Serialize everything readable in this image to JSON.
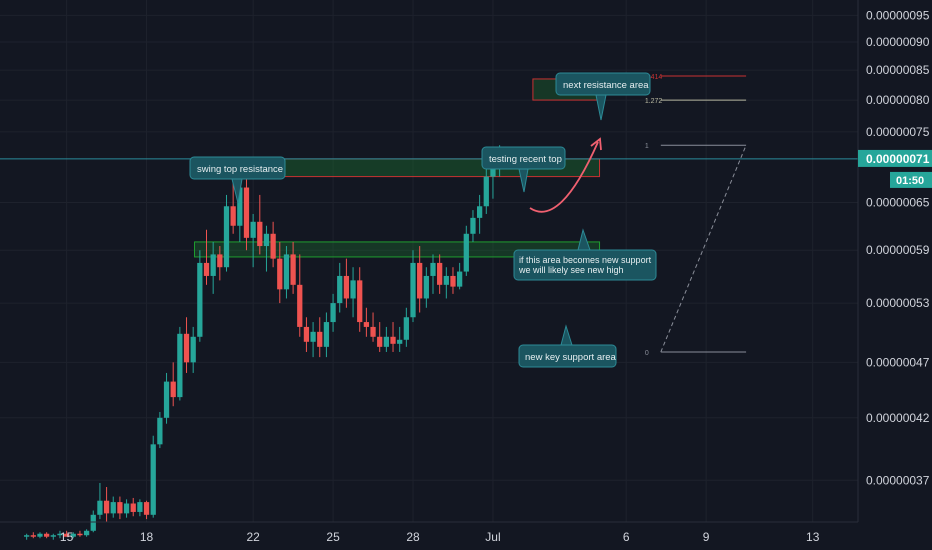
{
  "colors": {
    "background": "#131722",
    "up": "#26a69a",
    "down": "#ef5350",
    "grid": "#1e222d",
    "axis_text": "#d1d4dc",
    "price_line": "#2a8d9b",
    "price_badge": "#26a69a",
    "support_box": "#1f9e2f",
    "resistance_box": "#c83232",
    "callout": "#1b5560"
  },
  "chart_data": {
    "type": "candlestick",
    "y_axis": {
      "ticks": [
        "0.00000095",
        "0.00000090",
        "0.00000085",
        "0.00000080",
        "0.00000075",
        "0.00000065",
        "0.00000059",
        "0.00000053",
        "0.00000047",
        "0.00000042",
        "0.00000037"
      ],
      "scale": "log",
      "range": [
        3.4e-07,
        9.8e-07
      ]
    },
    "x_axis": {
      "ticks": [
        "15",
        "18",
        "22",
        "25",
        "28",
        "Jul",
        "6",
        "9",
        "13"
      ],
      "tick_days": [
        15,
        18,
        22,
        25,
        28,
        31,
        36,
        39,
        43
      ],
      "range": [
        12.5,
        44.7
      ]
    },
    "current_price": {
      "value": "0.00000071",
      "countdown": "01:50"
    },
    "candles": [
      {
        "d": 13.5,
        "o": 3.3e-07,
        "h": 3.32e-07,
        "l": 3.28e-07,
        "c": 3.31e-07
      },
      {
        "d": 13.75,
        "o": 3.31e-07,
        "h": 3.33e-07,
        "l": 3.29e-07,
        "c": 3.3e-07
      },
      {
        "d": 14.0,
        "o": 3.3e-07,
        "h": 3.33e-07,
        "l": 3.29e-07,
        "c": 3.32e-07
      },
      {
        "d": 14.25,
        "o": 3.32e-07,
        "h": 3.33e-07,
        "l": 3.29e-07,
        "c": 3.3e-07
      },
      {
        "d": 14.5,
        "o": 3.3e-07,
        "h": 3.32e-07,
        "l": 3.28e-07,
        "c": 3.31e-07
      },
      {
        "d": 14.75,
        "o": 3.31e-07,
        "h": 3.34e-07,
        "l": 3.29e-07,
        "c": 3.32e-07
      },
      {
        "d": 15.0,
        "o": 3.32e-07,
        "h": 3.34e-07,
        "l": 3.3e-07,
        "c": 3.3e-07
      },
      {
        "d": 15.25,
        "o": 3.3e-07,
        "h": 3.33e-07,
        "l": 3.29e-07,
        "c": 3.32e-07
      },
      {
        "d": 15.5,
        "o": 3.32e-07,
        "h": 3.34e-07,
        "l": 3.3e-07,
        "c": 3.31e-07
      },
      {
        "d": 15.75,
        "o": 3.31e-07,
        "h": 3.35e-07,
        "l": 3.3e-07,
        "c": 3.34e-07
      },
      {
        "d": 16.0,
        "o": 3.34e-07,
        "h": 3.48e-07,
        "l": 3.33e-07,
        "c": 3.45e-07
      },
      {
        "d": 16.25,
        "o": 3.45e-07,
        "h": 3.68e-07,
        "l": 3.42e-07,
        "c": 3.55e-07
      },
      {
        "d": 16.5,
        "o": 3.55e-07,
        "h": 3.65e-07,
        "l": 3.4e-07,
        "c": 3.46e-07
      },
      {
        "d": 16.75,
        "o": 3.46e-07,
        "h": 3.58e-07,
        "l": 3.43e-07,
        "c": 3.54e-07
      },
      {
        "d": 17.0,
        "o": 3.54e-07,
        "h": 3.58e-07,
        "l": 3.42e-07,
        "c": 3.46e-07
      },
      {
        "d": 17.25,
        "o": 3.46e-07,
        "h": 3.56e-07,
        "l": 3.43e-07,
        "c": 3.53e-07
      },
      {
        "d": 17.5,
        "o": 3.53e-07,
        "h": 3.57e-07,
        "l": 3.44e-07,
        "c": 3.47e-07
      },
      {
        "d": 17.75,
        "o": 3.47e-07,
        "h": 3.56e-07,
        "l": 3.44e-07,
        "c": 3.54e-07
      },
      {
        "d": 18.0,
        "o": 3.54e-07,
        "h": 3.55e-07,
        "l": 3.42e-07,
        "c": 3.45e-07
      },
      {
        "d": 18.25,
        "o": 3.45e-07,
        "h": 4.05e-07,
        "l": 3.43e-07,
        "c": 3.98e-07
      },
      {
        "d": 18.5,
        "o": 3.98e-07,
        "h": 4.25e-07,
        "l": 3.95e-07,
        "c": 4.2e-07
      },
      {
        "d": 18.75,
        "o": 4.2e-07,
        "h": 4.6e-07,
        "l": 4.15e-07,
        "c": 4.52e-07
      },
      {
        "d": 19.0,
        "o": 4.52e-07,
        "h": 4.7e-07,
        "l": 4.3e-07,
        "c": 4.38e-07
      },
      {
        "d": 19.25,
        "o": 4.38e-07,
        "h": 5.05e-07,
        "l": 4.35e-07,
        "c": 4.98e-07
      },
      {
        "d": 19.5,
        "o": 4.98e-07,
        "h": 5.15e-07,
        "l": 4.6e-07,
        "c": 4.7e-07
      },
      {
        "d": 19.75,
        "o": 4.7e-07,
        "h": 5.05e-07,
        "l": 4.6e-07,
        "c": 4.95e-07
      },
      {
        "d": 20.0,
        "o": 4.95e-07,
        "h": 5.9e-07,
        "l": 4.9e-07,
        "c": 5.75e-07
      },
      {
        "d": 20.25,
        "o": 5.75e-07,
        "h": 6.15e-07,
        "l": 5.5e-07,
        "c": 5.6e-07
      },
      {
        "d": 20.5,
        "o": 5.6e-07,
        "h": 6e-07,
        "l": 5.4e-07,
        "c": 5.85e-07
      },
      {
        "d": 20.75,
        "o": 5.85e-07,
        "h": 5.95e-07,
        "l": 5.55e-07,
        "c": 5.7e-07
      },
      {
        "d": 21.0,
        "o": 5.7e-07,
        "h": 6.6e-07,
        "l": 5.65e-07,
        "c": 6.45e-07
      },
      {
        "d": 21.25,
        "o": 6.45e-07,
        "h": 6.9e-07,
        "l": 6.1e-07,
        "c": 6.2e-07
      },
      {
        "d": 21.5,
        "o": 6.2e-07,
        "h": 6.85e-07,
        "l": 6e-07,
        "c": 6.7e-07
      },
      {
        "d": 21.75,
        "o": 6.7e-07,
        "h": 7.05e-07,
        "l": 5.9e-07,
        "c": 6.05e-07
      },
      {
        "d": 22.0,
        "o": 6.05e-07,
        "h": 6.35e-07,
        "l": 5.7e-07,
        "c": 6.25e-07
      },
      {
        "d": 22.25,
        "o": 6.25e-07,
        "h": 6.6e-07,
        "l": 5.85e-07,
        "c": 5.95e-07
      },
      {
        "d": 22.5,
        "o": 5.95e-07,
        "h": 6.2e-07,
        "l": 5.65e-07,
        "c": 6.1e-07
      },
      {
        "d": 22.75,
        "o": 6.1e-07,
        "h": 6.25e-07,
        "l": 5.7e-07,
        "c": 5.8e-07
      },
      {
        "d": 23.0,
        "o": 5.8e-07,
        "h": 6e-07,
        "l": 5.3e-07,
        "c": 5.45e-07
      },
      {
        "d": 23.25,
        "o": 5.45e-07,
        "h": 5.95e-07,
        "l": 5.35e-07,
        "c": 5.85e-07
      },
      {
        "d": 23.5,
        "o": 5.85e-07,
        "h": 6e-07,
        "l": 5.4e-07,
        "c": 5.5e-07
      },
      {
        "d": 23.75,
        "o": 5.5e-07,
        "h": 5.85e-07,
        "l": 4.95e-07,
        "c": 5.05e-07
      },
      {
        "d": 24.0,
        "o": 5.05e-07,
        "h": 5.15e-07,
        "l": 4.8e-07,
        "c": 4.9e-07
      },
      {
        "d": 24.25,
        "o": 4.9e-07,
        "h": 5.1e-07,
        "l": 4.75e-07,
        "c": 5e-07
      },
      {
        "d": 24.5,
        "o": 5e-07,
        "h": 5.15e-07,
        "l": 4.75e-07,
        "c": 4.85e-07
      },
      {
        "d": 24.75,
        "o": 4.85e-07,
        "h": 5.2e-07,
        "l": 4.75e-07,
        "c": 5.1e-07
      },
      {
        "d": 25.0,
        "o": 5.1e-07,
        "h": 5.4e-07,
        "l": 5e-07,
        "c": 5.3e-07
      },
      {
        "d": 25.25,
        "o": 5.3e-07,
        "h": 5.75e-07,
        "l": 5.2e-07,
        "c": 5.6e-07
      },
      {
        "d": 25.5,
        "o": 5.6e-07,
        "h": 5.8e-07,
        "l": 5.25e-07,
        "c": 5.35e-07
      },
      {
        "d": 25.75,
        "o": 5.35e-07,
        "h": 5.7e-07,
        "l": 5.15e-07,
        "c": 5.55e-07
      },
      {
        "d": 26.0,
        "o": 5.55e-07,
        "h": 5.7e-07,
        "l": 5e-07,
        "c": 5.1e-07
      },
      {
        "d": 26.25,
        "o": 5.1e-07,
        "h": 5.25e-07,
        "l": 4.95e-07,
        "c": 5.05e-07
      },
      {
        "d": 26.5,
        "o": 5.05e-07,
        "h": 5.2e-07,
        "l": 4.9e-07,
        "c": 4.95e-07
      },
      {
        "d": 26.75,
        "o": 4.95e-07,
        "h": 5.1e-07,
        "l": 4.8e-07,
        "c": 4.85e-07
      },
      {
        "d": 27.0,
        "o": 4.85e-07,
        "h": 5.05e-07,
        "l": 4.8e-07,
        "c": 4.95e-07
      },
      {
        "d": 27.25,
        "o": 4.95e-07,
        "h": 5.1e-07,
        "l": 4.8e-07,
        "c": 4.88e-07
      },
      {
        "d": 27.5,
        "o": 4.88e-07,
        "h": 5.05e-07,
        "l": 4.8e-07,
        "c": 4.92e-07
      },
      {
        "d": 27.75,
        "o": 4.92e-07,
        "h": 5.25e-07,
        "l": 4.85e-07,
        "c": 5.15e-07
      },
      {
        "d": 28.0,
        "o": 5.15e-07,
        "h": 5.9e-07,
        "l": 5.1e-07,
        "c": 5.75e-07
      },
      {
        "d": 28.25,
        "o": 5.75e-07,
        "h": 5.95e-07,
        "l": 5.2e-07,
        "c": 5.35e-07
      },
      {
        "d": 28.5,
        "o": 5.35e-07,
        "h": 5.7e-07,
        "l": 5.25e-07,
        "c": 5.6e-07
      },
      {
        "d": 28.75,
        "o": 5.6e-07,
        "h": 5.85e-07,
        "l": 5.4e-07,
        "c": 5.75e-07
      },
      {
        "d": 29.0,
        "o": 5.75e-07,
        "h": 5.85e-07,
        "l": 5.4e-07,
        "c": 5.5e-07
      },
      {
        "d": 29.25,
        "o": 5.5e-07,
        "h": 5.7e-07,
        "l": 5.35e-07,
        "c": 5.6e-07
      },
      {
        "d": 29.5,
        "o": 5.6e-07,
        "h": 5.7e-07,
        "l": 5.4e-07,
        "c": 5.48e-07
      },
      {
        "d": 29.75,
        "o": 5.48e-07,
        "h": 5.75e-07,
        "l": 5.45e-07,
        "c": 5.65e-07
      },
      {
        "d": 30.0,
        "o": 5.65e-07,
        "h": 6.2e-07,
        "l": 5.6e-07,
        "c": 6.1e-07
      },
      {
        "d": 30.25,
        "o": 6.1e-07,
        "h": 6.4e-07,
        "l": 6e-07,
        "c": 6.3e-07
      },
      {
        "d": 30.5,
        "o": 6.3e-07,
        "h": 6.6e-07,
        "l": 6.1e-07,
        "c": 6.45e-07
      },
      {
        "d": 30.75,
        "o": 6.45e-07,
        "h": 6.95e-07,
        "l": 6.35e-07,
        "c": 6.85e-07
      },
      {
        "d": 31.0,
        "o": 6.85e-07,
        "h": 7.05e-07,
        "l": 6.55e-07,
        "c": 6.95e-07
      },
      {
        "d": 31.25,
        "o": 6.95e-07,
        "h": 7.3e-07,
        "l": 6.85e-07,
        "c": 7.1e-07
      }
    ]
  },
  "zones": [
    {
      "name": "swing-top-resistance-zone",
      "kind": "resistance",
      "from_day": 20.3,
      "to_day": 35.0,
      "low": 6.85e-07,
      "high": 7.1e-07
    },
    {
      "name": "key-support-zone",
      "kind": "support",
      "from_day": 19.8,
      "to_day": 35.0,
      "low": 5.82e-07,
      "high": 6e-07
    },
    {
      "name": "target-resistance-zone",
      "kind": "target",
      "from_day": 32.5,
      "to_day": 35.1,
      "low": 8e-07,
      "high": 8.35e-07
    }
  ],
  "fib": {
    "levels": [
      {
        "label": "1.414",
        "value": 8.4e-07,
        "color": "#c83232"
      },
      {
        "label": "1.272",
        "value": 8e-07,
        "color": "#b8b8a0"
      },
      {
        "label": "1",
        "value": 7.3e-07,
        "color": "#8a8e99"
      },
      {
        "label": "0",
        "value": 4.8e-07,
        "color": "#8a8e99"
      }
    ],
    "from_day": 37.3,
    "to_day": 40.5,
    "base": {
      "day": 37.3,
      "value": 4.8e-07
    },
    "top": {
      "day": 40.5,
      "value": 7.3e-07
    }
  },
  "callouts": [
    {
      "name": "callout-swing-top-resistance",
      "lines": [
        "swing top resistance"
      ]
    },
    {
      "name": "callout-testing-recent-top",
      "lines": [
        "testing recent top"
      ]
    },
    {
      "name": "callout-next-resistance-area",
      "lines": [
        "next resistance area"
      ]
    },
    {
      "name": "callout-new-support",
      "lines": [
        "if this area becomes  new support",
        "we will likely see new high"
      ]
    },
    {
      "name": "callout-new-key-support",
      "lines": [
        "new key support area"
      ]
    }
  ]
}
